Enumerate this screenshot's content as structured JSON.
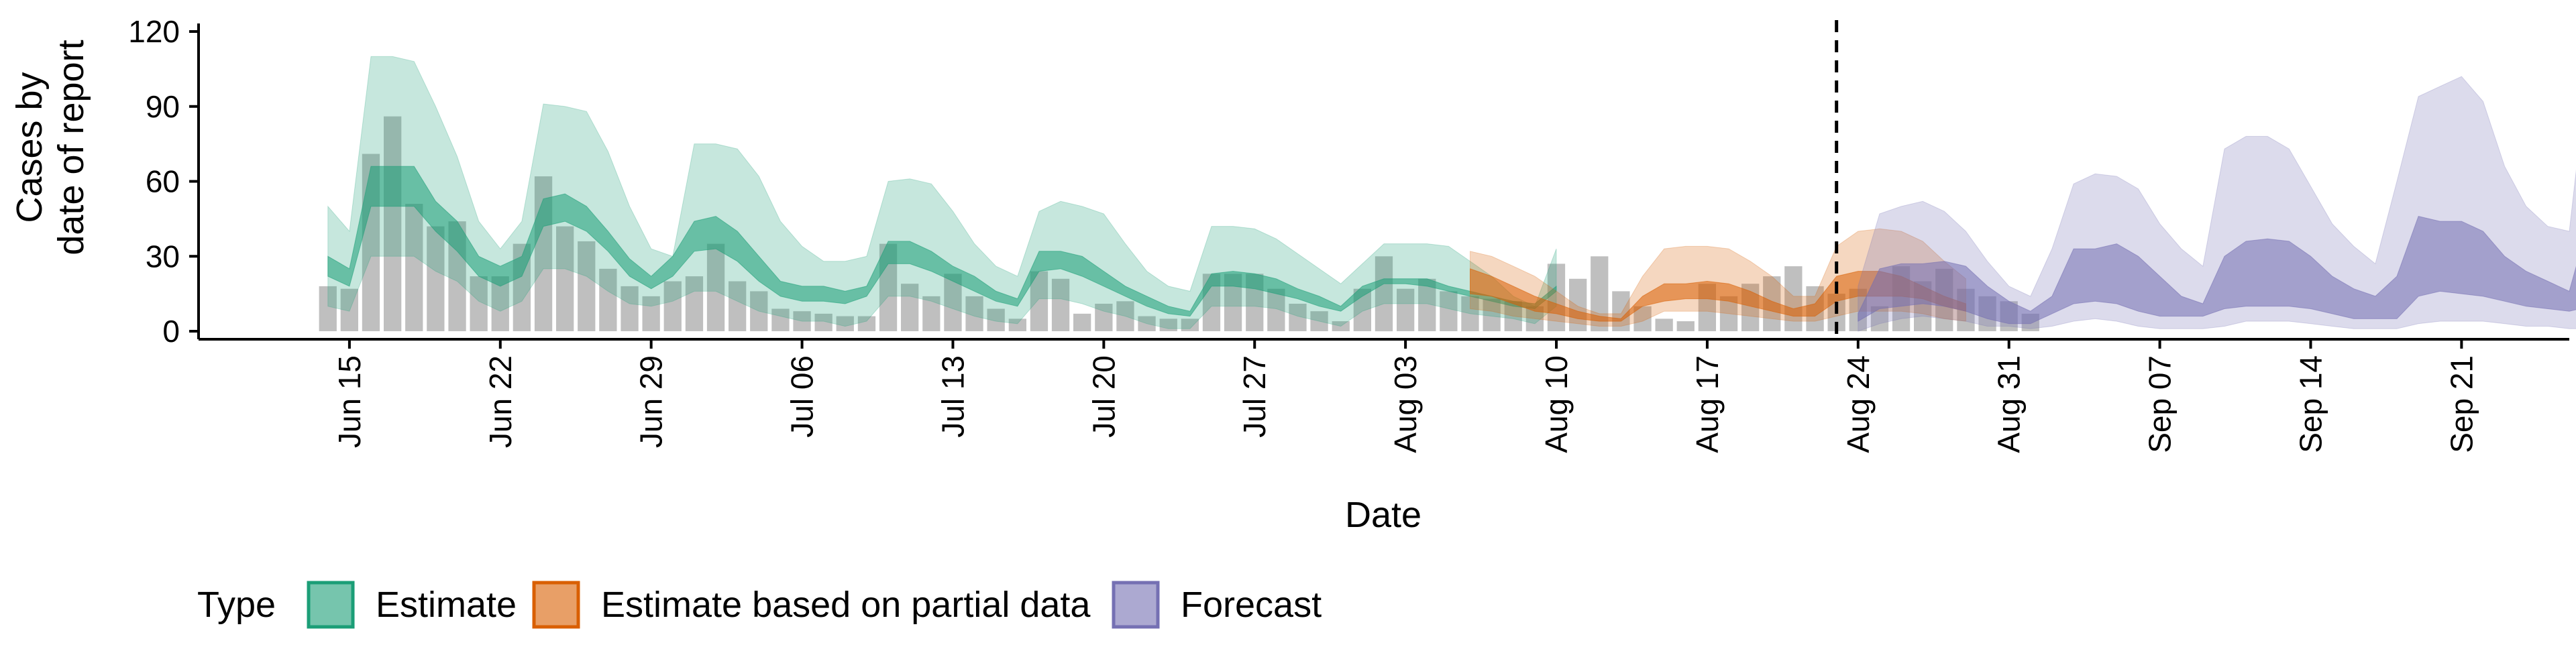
{
  "chart_data": {
    "type": "area",
    "title": "",
    "xlabel": "Date",
    "ylabel": [
      "Cases by",
      "date of report"
    ],
    "ylim": [
      0,
      120
    ],
    "yticks": [
      0,
      30,
      60,
      90,
      120
    ],
    "xlim": [
      "2020-06-08",
      "2020-09-26"
    ],
    "xticks": [
      {
        "date": "2020-06-15",
        "label": "Jun 15"
      },
      {
        "date": "2020-06-22",
        "label": "Jun 22"
      },
      {
        "date": "2020-06-29",
        "label": "Jun 29"
      },
      {
        "date": "2020-07-06",
        "label": "Jul 06"
      },
      {
        "date": "2020-07-13",
        "label": "Jul 13"
      },
      {
        "date": "2020-07-20",
        "label": "Jul 20"
      },
      {
        "date": "2020-07-27",
        "label": "Jul 27"
      },
      {
        "date": "2020-08-03",
        "label": "Aug 03"
      },
      {
        "date": "2020-08-10",
        "label": "Aug 10"
      },
      {
        "date": "2020-08-17",
        "label": "Aug 17"
      },
      {
        "date": "2020-08-24",
        "label": "Aug 24"
      },
      {
        "date": "2020-08-31",
        "label": "Aug 31"
      },
      {
        "date": "2020-09-07",
        "label": "Sep 07"
      },
      {
        "date": "2020-09-14",
        "label": "Sep 14"
      },
      {
        "date": "2020-09-21",
        "label": "Sep 21"
      }
    ],
    "grid": false,
    "legend": {
      "position": "bottom",
      "title": "Type",
      "entries": [
        {
          "label": "Estimate",
          "color": "#1b9e77"
        },
        {
          "label": "Estimate based on partial data",
          "color": "#d95f02"
        },
        {
          "label": "Forecast",
          "color": "#7570b3"
        }
      ]
    },
    "forecast_line_date": "2020-08-23",
    "bars": {
      "color": "#a9a9a9",
      "start_date": "2020-06-14",
      "values": [
        18,
        17,
        71,
        86,
        51,
        42,
        44,
        22,
        22,
        35,
        62,
        42,
        36,
        25,
        18,
        14,
        20,
        22,
        35,
        20,
        16,
        9,
        8,
        7,
        6,
        6,
        35,
        19,
        14,
        23,
        14,
        9,
        5,
        24,
        21,
        7,
        11,
        12,
        6,
        5,
        5,
        23,
        23,
        23,
        17,
        11,
        8,
        4,
        17,
        30,
        17,
        21,
        16,
        14,
        13,
        12,
        10,
        27,
        21,
        30,
        16,
        10,
        5,
        4,
        19,
        14,
        19,
        22,
        26,
        18,
        15,
        17,
        10,
        26,
        20,
        25,
        17,
        14,
        12,
        7
      ]
    },
    "series": [
      {
        "name": "Estimate",
        "color": "#1b9e77",
        "start_date": "2020-06-14",
        "lower_outer": [
          10,
          8,
          30,
          30,
          30,
          24,
          20,
          12,
          8,
          12,
          25,
          25,
          22,
          16,
          11,
          10,
          12,
          16,
          16,
          12,
          8,
          6,
          4,
          4,
          2,
          4,
          14,
          14,
          12,
          9,
          6,
          4,
          3,
          13,
          13,
          11,
          8,
          6,
          3,
          1,
          1,
          10,
          10,
          10,
          9,
          6,
          4,
          2,
          8,
          11,
          11,
          11,
          9,
          7,
          6,
          5,
          3,
          10
        ],
        "lower_inner": [
          22,
          18,
          50,
          50,
          50,
          40,
          32,
          22,
          18,
          22,
          42,
          44,
          40,
          32,
          22,
          17,
          22,
          32,
          33,
          28,
          20,
          14,
          12,
          12,
          11,
          14,
          27,
          27,
          24,
          20,
          16,
          12,
          10,
          24,
          25,
          22,
          18,
          14,
          10,
          7,
          6,
          18,
          18,
          17,
          15,
          13,
          10,
          8,
          14,
          19,
          19,
          18,
          16,
          14,
          12,
          10,
          9,
          16
        ],
        "upper_inner": [
          30,
          25,
          66,
          66,
          66,
          52,
          44,
          30,
          26,
          30,
          53,
          55,
          50,
          40,
          29,
          22,
          30,
          44,
          46,
          40,
          30,
          20,
          18,
          18,
          16,
          18,
          36,
          36,
          32,
          26,
          22,
          16,
          13,
          32,
          32,
          30,
          24,
          18,
          14,
          10,
          8,
          23,
          24,
          23,
          21,
          17,
          14,
          10,
          18,
          21,
          21,
          21,
          18,
          16,
          14,
          12,
          11,
          18
        ],
        "upper_outer": [
          50,
          40,
          110,
          110,
          108,
          90,
          70,
          44,
          33,
          44,
          91,
          90,
          88,
          72,
          50,
          33,
          30,
          75,
          75,
          73,
          62,
          44,
          34,
          28,
          28,
          30,
          60,
          61,
          59,
          48,
          35,
          26,
          22,
          48,
          52,
          50,
          47,
          35,
          24,
          18,
          16,
          42,
          42,
          41,
          37,
          31,
          25,
          19,
          27,
          35,
          35,
          35,
          34,
          28,
          22,
          14,
          10,
          33
        ]
      },
      {
        "name": "Estimate based on partial data",
        "color": "#d95f02",
        "start_date": "2020-08-06",
        "lower_outer": [
          9,
          8,
          6,
          5,
          4,
          3,
          2,
          2,
          4,
          8,
          8,
          8,
          7,
          6,
          5,
          4,
          4,
          6,
          8,
          8,
          8,
          7,
          5,
          4
        ],
        "lower_inner": [
          15,
          14,
          11,
          8,
          7,
          5,
          4,
          4,
          10,
          12,
          13,
          13,
          12,
          10,
          8,
          6,
          6,
          12,
          14,
          14,
          14,
          13,
          10,
          8
        ],
        "upper_inner": [
          25,
          22,
          18,
          14,
          11,
          8,
          6,
          5,
          14,
          19,
          19,
          20,
          19,
          16,
          12,
          9,
          11,
          22,
          24,
          24,
          22,
          18,
          14,
          11
        ],
        "upper_outer": [
          32,
          30,
          26,
          22,
          16,
          10,
          7,
          7,
          22,
          33,
          34,
          34,
          33,
          28,
          22,
          14,
          14,
          34,
          40,
          41,
          40,
          36,
          28,
          21
        ]
      },
      {
        "name": "Forecast",
        "color": "#7570b3",
        "start_date": "2020-08-24",
        "lower_outer": [
          0,
          3,
          5,
          6,
          5,
          4,
          2,
          2,
          1,
          2,
          4,
          5,
          4,
          2,
          1,
          1,
          1,
          2,
          4,
          4,
          4,
          3,
          2,
          1,
          1,
          1,
          3,
          4,
          4,
          4,
          3,
          2,
          2,
          1,
          1
        ],
        "lower_inner": [
          4,
          9,
          10,
          11,
          10,
          8,
          5,
          3,
          3,
          7,
          11,
          12,
          11,
          8,
          6,
          6,
          6,
          9,
          10,
          10,
          10,
          9,
          7,
          5,
          5,
          5,
          14,
          16,
          15,
          14,
          12,
          10,
          9,
          8,
          10
        ],
        "upper_inner": [
          7,
          25,
          27,
          27,
          28,
          26,
          18,
          12,
          8,
          14,
          33,
          33,
          35,
          30,
          22,
          14,
          11,
          30,
          36,
          37,
          36,
          30,
          22,
          17,
          14,
          22,
          46,
          44,
          44,
          40,
          30,
          24,
          20,
          16,
          47
        ],
        "upper_outer": [
          18,
          47,
          50,
          52,
          48,
          40,
          28,
          18,
          14,
          33,
          59,
          63,
          62,
          57,
          43,
          33,
          26,
          73,
          78,
          78,
          73,
          58,
          43,
          34,
          27,
          60,
          94,
          98,
          102,
          92,
          66,
          50,
          42,
          40,
          116
        ]
      }
    ]
  }
}
